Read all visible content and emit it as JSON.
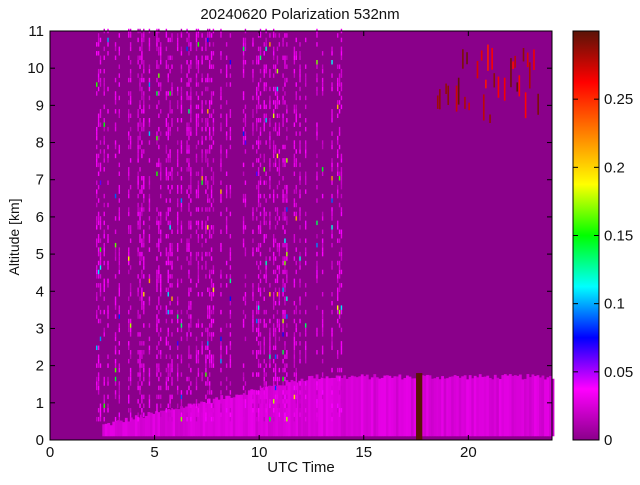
{
  "chart_data": {
    "type": "heatmap",
    "title": "20240620 Polarization 532nm",
    "xlabel": "UTC Time",
    "ylabel": "Altitude [km]",
    "xlim": [
      0,
      24
    ],
    "ylim": [
      0,
      11
    ],
    "xticks": [
      0,
      5,
      10,
      15,
      20
    ],
    "yticks": [
      0,
      1,
      2,
      3,
      4,
      5,
      6,
      7,
      8,
      9,
      10,
      11
    ],
    "colorbar": {
      "range": [
        0,
        0.3
      ],
      "ticks": [
        0,
        0.05,
        0.1,
        0.15,
        0.2,
        0.25
      ],
      "tick_labels": [
        "0",
        "0.05",
        "0.1",
        "0.15",
        "0.2",
        "0.25"
      ],
      "colormap": [
        "#8a008a",
        "#ff00ff",
        "#0000ff",
        "#00ffff",
        "#00ff00",
        "#ffff00",
        "#ff8000",
        "#ff0000",
        "#5a1408"
      ]
    },
    "background_value": 0.0,
    "regions": [
      {
        "feature": "boundary layer depolarization",
        "time_range": [
          2.5,
          24
        ],
        "altitude_range": [
          0.1,
          1.7
        ],
        "value": 0.03
      },
      {
        "feature": "noise columns",
        "time_range": [
          2.2,
          14
        ],
        "altitude_range": [
          0.5,
          11
        ],
        "value": 0.04
      },
      {
        "feature": "high-altitude cirrus",
        "time_range": [
          18.5,
          23.5
        ],
        "altitude_range": [
          8.5,
          11
        ],
        "value": 0.3
      },
      {
        "feature": "data gap",
        "time_range": [
          17.5,
          17.8
        ],
        "altitude_range": [
          0,
          1.8
        ],
        "value": 0.3
      }
    ]
  }
}
